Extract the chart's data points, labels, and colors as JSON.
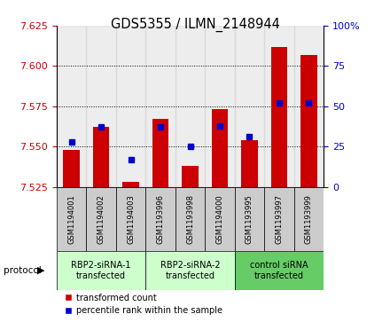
{
  "title": "GDS5355 / ILMN_2148944",
  "samples": [
    "GSM1194001",
    "GSM1194002",
    "GSM1194003",
    "GSM1193996",
    "GSM1193998",
    "GSM1194000",
    "GSM1193995",
    "GSM1193997",
    "GSM1193999"
  ],
  "red_values": [
    7.548,
    7.562,
    7.528,
    7.567,
    7.538,
    7.573,
    7.554,
    7.612,
    7.607
  ],
  "blue_values": [
    7.553,
    7.562,
    7.542,
    7.562,
    7.55,
    7.563,
    7.556,
    7.577,
    7.577
  ],
  "ylim_left": [
    7.525,
    7.625
  ],
  "ylim_right": [
    0,
    100
  ],
  "yticks_left": [
    7.525,
    7.55,
    7.575,
    7.6,
    7.625
  ],
  "yticks_right": [
    0,
    25,
    50,
    75,
    100
  ],
  "groups": [
    {
      "label": "RBP2-siRNA-1\ntransfected",
      "indices": [
        0,
        1,
        2
      ],
      "color": "#ccffcc"
    },
    {
      "label": "RBP2-siRNA-2\ntransfected",
      "indices": [
        3,
        4,
        5
      ],
      "color": "#ccffcc"
    },
    {
      "label": "control siRNA\ntransfected",
      "indices": [
        6,
        7,
        8
      ],
      "color": "#66cc66"
    }
  ],
  "protocol_label": "protocol",
  "legend_red": "transformed count",
  "legend_blue": "percentile rank within the sample",
  "bar_width": 0.55,
  "bar_color": "#cc0000",
  "dot_color": "#0000cc",
  "axis_color_left": "#cc0000",
  "axis_color_right": "#0000cc",
  "sample_bg_color": "#cccccc",
  "group_colors": [
    "#ccffcc",
    "#ccffcc",
    "#66cc66"
  ]
}
